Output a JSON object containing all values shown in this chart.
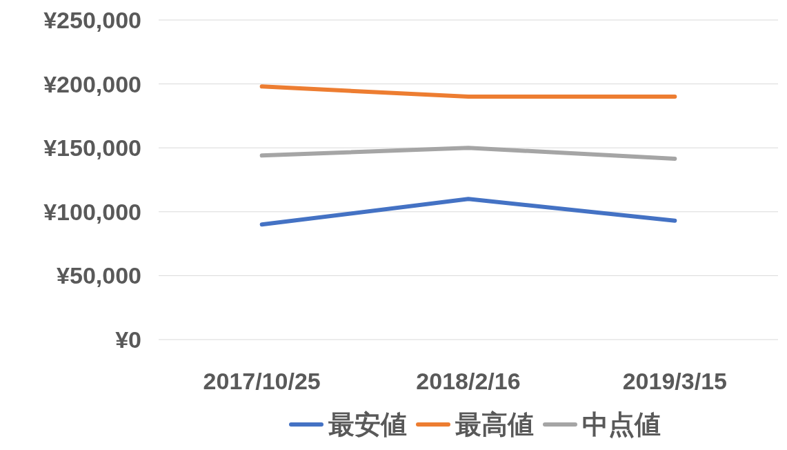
{
  "chart_data": {
    "type": "line",
    "categories": [
      "2017/10/25",
      "2018/2/16",
      "2019/3/15"
    ],
    "series": [
      {
        "name": "最安値",
        "color": "#4472c4",
        "values": [
          90000,
          110000,
          93000
        ]
      },
      {
        "name": "最高値",
        "color": "#ed7d31",
        "values": [
          198000,
          190000,
          190000
        ]
      },
      {
        "name": "中点値",
        "color": "#a5a5a5",
        "values": [
          144000,
          150000,
          141500
        ]
      }
    ],
    "ylim": [
      0,
      250000
    ],
    "yticks": [
      {
        "value": 0,
        "label": "¥0"
      },
      {
        "value": 50000,
        "label": "¥50,000"
      },
      {
        "value": 100000,
        "label": "¥100,000"
      },
      {
        "value": 150000,
        "label": "¥150,000"
      },
      {
        "value": 200000,
        "label": "¥200,000"
      },
      {
        "value": 250000,
        "label": "¥250,000"
      }
    ],
    "grid": "y",
    "legend": "bottom",
    "marker": "none",
    "line_style": "solid"
  }
}
